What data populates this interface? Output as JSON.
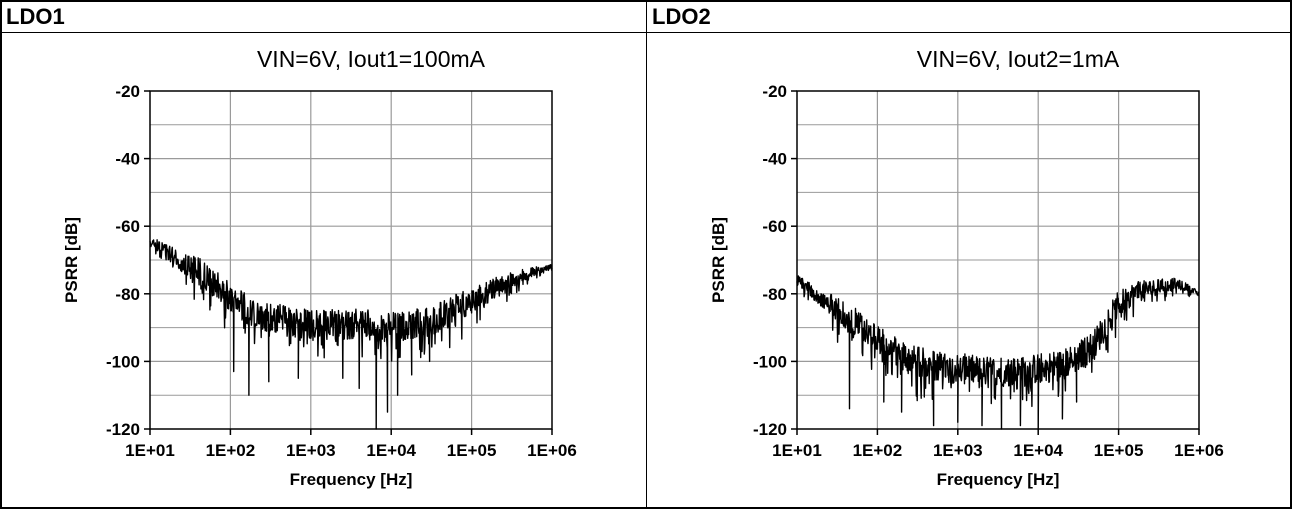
{
  "panels": [
    {
      "header": "LDO1"
    },
    {
      "header": "LDO2"
    }
  ],
  "chart_data": [
    {
      "type": "line",
      "title": "VIN=6V, Iout1=100mA",
      "xlabel": "Frequency [Hz]",
      "ylabel": "PSRR [dB]",
      "xscale": "log",
      "xlim": [
        10,
        1000000
      ],
      "ylim": [
        -120,
        -20
      ],
      "grid": true,
      "xticks": [
        "1E+01",
        "1E+02",
        "1E+03",
        "1E+04",
        "1E+05",
        "1E+06"
      ],
      "yticks": [
        "-20",
        "-40",
        "-60",
        "-80",
        "-100",
        "-120"
      ],
      "series": [
        {
          "color": "#000000",
          "x": [
            10,
            15,
            20,
            30,
            50,
            70,
            100,
            150,
            200,
            300,
            500,
            700,
            1000,
            2000,
            3000,
            5000,
            7000,
            10000,
            20000,
            30000,
            50000,
            70000,
            100000,
            150000,
            200000,
            300000,
            500000,
            700000,
            1000000
          ],
          "y": [
            -64,
            -67,
            -69,
            -72,
            -75,
            -78,
            -81,
            -84,
            -86,
            -87,
            -88,
            -89,
            -89,
            -89,
            -89,
            -89,
            -90,
            -90,
            -89,
            -88,
            -86,
            -84,
            -82,
            -80,
            -78,
            -76,
            -74,
            -73,
            -72
          ],
          "dips": [
            [
              110,
              -103
            ],
            [
              170,
              -110
            ],
            [
              300,
              -106
            ],
            [
              700,
              -105
            ],
            [
              2500,
              -105
            ],
            [
              4000,
              -108
            ],
            [
              6500,
              -120
            ],
            [
              9000,
              -115
            ],
            [
              12000,
              -110
            ],
            [
              18000,
              -104
            ],
            [
              30000,
              -100
            ]
          ]
        }
      ]
    },
    {
      "type": "line",
      "title": "VIN=6V, Iout2=1mA",
      "xlabel": "Frequency [Hz]",
      "ylabel": "PSRR [dB]",
      "xscale": "log",
      "xlim": [
        10,
        1000000
      ],
      "ylim": [
        -120,
        -20
      ],
      "grid": true,
      "xticks": [
        "1E+01",
        "1E+02",
        "1E+03",
        "1E+04",
        "1E+05",
        "1E+06"
      ],
      "yticks": [
        "-20",
        "-40",
        "-60",
        "-80",
        "-100",
        "-120"
      ],
      "series": [
        {
          "color": "#000000",
          "x": [
            10,
            15,
            20,
            30,
            50,
            70,
            100,
            150,
            200,
            300,
            500,
            700,
            1000,
            2000,
            3000,
            5000,
            7000,
            10000,
            20000,
            30000,
            50000,
            70000,
            100000,
            150000,
            200000,
            300000,
            500000,
            700000,
            1000000
          ],
          "y": [
            -76,
            -79,
            -81,
            -84,
            -88,
            -91,
            -94,
            -96,
            -98,
            -100,
            -101,
            -102,
            -102,
            -103,
            -103,
            -103,
            -103,
            -102,
            -101,
            -99,
            -95,
            -89,
            -83,
            -80,
            -79,
            -78,
            -77,
            -78,
            -80
          ],
          "dips": [
            [
              45,
              -114
            ],
            [
              120,
              -112
            ],
            [
              200,
              -115
            ],
            [
              500,
              -119
            ],
            [
              1000,
              -118
            ],
            [
              2000,
              -119
            ],
            [
              3500,
              -120
            ],
            [
              6000,
              -119
            ],
            [
              10000,
              -120
            ],
            [
              20000,
              -117
            ],
            [
              30000,
              -112
            ]
          ]
        }
      ]
    }
  ]
}
